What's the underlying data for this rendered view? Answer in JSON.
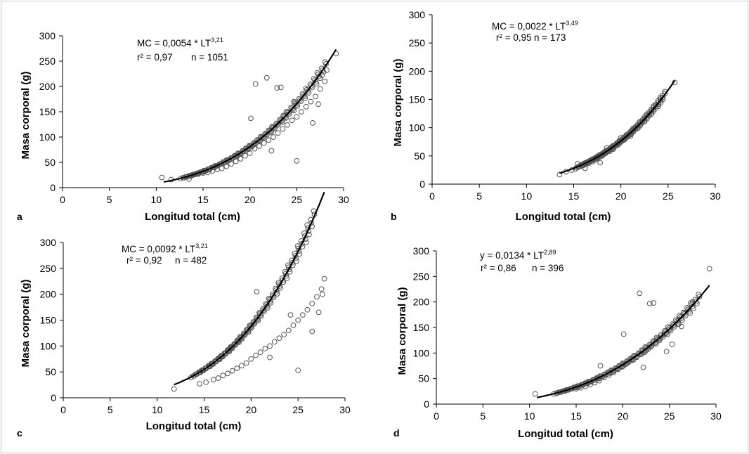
{
  "chart_data": [
    {
      "type": "scatter",
      "panel_label": "a",
      "xlabel": "Longitud total (cm)",
      "ylabel": "Masa corporal (g)",
      "xlim": [
        0,
        30
      ],
      "ylim": [
        0,
        300
      ],
      "xticks": [
        "0",
        "5",
        "10",
        "15",
        "20",
        "25",
        "30"
      ],
      "yticks": [
        "0",
        "50",
        "100",
        "150",
        "200",
        "250",
        "300"
      ],
      "equation": {
        "prefix": "MC = 0,0054 * LT",
        "exponent": "3,21",
        "r2_label": "r² = 0,97",
        "n_label": "n = 1051"
      },
      "fit": {
        "a": 0.0054,
        "b": 3.21,
        "x_range": [
          10.8,
          29.2
        ]
      },
      "series": [
        {
          "type": "scatter",
          "points": [
            [
              10.6,
              20
            ],
            [
              11.6,
              16
            ],
            [
              13.5,
              17
            ],
            [
              14.5,
              27
            ],
            [
              15.0,
              29
            ],
            [
              15.5,
              30
            ],
            [
              16,
              33
            ],
            [
              16.5,
              36
            ],
            [
              17,
              38
            ],
            [
              17.5,
              42
            ],
            [
              18,
              47
            ],
            [
              18.5,
              52
            ],
            [
              19,
              57
            ],
            [
              19.5,
              63
            ],
            [
              20,
              68
            ],
            [
              20.5,
              77
            ],
            [
              21,
              82
            ],
            [
              21.5,
              88
            ],
            [
              22,
              94
            ],
            [
              22.5,
              100
            ],
            [
              23,
              108
            ],
            [
              23.5,
              116
            ],
            [
              24,
              124
            ],
            [
              24.5,
              133
            ],
            [
              25,
              140
            ],
            [
              25.5,
              150
            ],
            [
              26,
              160
            ],
            [
              26.5,
              170
            ],
            [
              27,
              180
            ],
            [
              27.5,
              195
            ],
            [
              28,
              210
            ],
            [
              29.2,
              265
            ],
            [
              20.6,
              205
            ],
            [
              21.8,
              217
            ],
            [
              22.9,
              197
            ],
            [
              23.3,
              198
            ],
            [
              20.1,
              137
            ],
            [
              25.0,
              53
            ],
            [
              22.3,
              73
            ],
            [
              26.7,
              128
            ],
            [
              23.9,
              150
            ],
            [
              27.3,
              165
            ],
            [
              24.7,
              170
            ],
            [
              27.7,
              222
            ],
            [
              28.2,
              232
            ]
          ]
        }
      ]
    },
    {
      "type": "scatter",
      "panel_label": "b",
      "xlabel": "Longitud total (cm)",
      "ylabel": "Masa corporal (g)",
      "xlim": [
        0,
        30
      ],
      "ylim": [
        0,
        300
      ],
      "xticks": [
        "0",
        "5",
        "10",
        "15",
        "20",
        "25",
        "30"
      ],
      "yticks": [
        "0",
        "50",
        "100",
        "150",
        "200",
        "250",
        "300"
      ],
      "equation": {
        "prefix": "MC = 0,0022 * LT",
        "exponent": "3,49",
        "r2_label": "r² = 0,95",
        "n_label": "n = 173"
      },
      "fit": {
        "a": 0.0022,
        "b": 3.49,
        "x_range": [
          13.5,
          25.7
        ]
      },
      "series": [
        {
          "type": "scatter",
          "points": [
            [
              13.5,
              17
            ],
            [
              14.2,
              22
            ],
            [
              14.8,
              25
            ],
            [
              15.2,
              27
            ],
            [
              15.5,
              30
            ],
            [
              15.8,
              32
            ],
            [
              16,
              33
            ],
            [
              16.3,
              35
            ],
            [
              16.6,
              37
            ],
            [
              17,
              40
            ],
            [
              17.3,
              43
            ],
            [
              17.6,
              46
            ],
            [
              18,
              50
            ],
            [
              18.4,
              55
            ],
            [
              18.8,
              58
            ],
            [
              19.2,
              62
            ],
            [
              19.8,
              72
            ],
            [
              20,
              82
            ],
            [
              20.3,
              80
            ],
            [
              21,
              85
            ],
            [
              21.2,
              95
            ],
            [
              21.5,
              100
            ],
            [
              25.7,
              180
            ],
            [
              16.2,
              28
            ],
            [
              17.8,
              38
            ],
            [
              15.4,
              36
            ],
            [
              18.5,
              64
            ]
          ]
        }
      ]
    },
    {
      "type": "scatter",
      "panel_label": "c",
      "xlabel": "Longitud total (cm)",
      "ylabel": "Masa corporal (g)",
      "xlim": [
        0,
        30
      ],
      "ylim": [
        0,
        300
      ],
      "xticks": [
        "0",
        "5",
        "10",
        "15",
        "20",
        "25",
        "30"
      ],
      "yticks": [
        "0",
        "50",
        "100",
        "150",
        "200",
        "250",
        "300"
      ],
      "equation": {
        "prefix": "MC = 0,0092 * LT",
        "exponent": "3,21",
        "r2_label": "r² = 0,92",
        "n_label": "n = 482"
      },
      "fit": {
        "a": 0.0092,
        "b": 3.21,
        "x_range": [
          11.8,
          27.8
        ]
      },
      "series": [
        {
          "type": "scatter",
          "points": [
            [
              11.8,
              17
            ],
            [
              14.5,
              27
            ],
            [
              15.2,
              30
            ],
            [
              16,
              35
            ],
            [
              16.5,
              38
            ],
            [
              17,
              43
            ],
            [
              17.5,
              47
            ],
            [
              18,
              52
            ],
            [
              18.5,
              57
            ],
            [
              19,
              62
            ],
            [
              19.5,
              67
            ],
            [
              20,
              75
            ],
            [
              20.5,
              82
            ],
            [
              21,
              88
            ],
            [
              21.5,
              95
            ],
            [
              22,
              100
            ],
            [
              22.5,
              108
            ],
            [
              23,
              115
            ],
            [
              23.5,
              122
            ],
            [
              24,
              130
            ],
            [
              24.5,
              140
            ],
            [
              25,
              150
            ],
            [
              25.5,
              160
            ],
            [
              26,
              170
            ],
            [
              26.5,
              182
            ],
            [
              27,
              195
            ],
            [
              27.5,
              210
            ],
            [
              27.8,
              230
            ],
            [
              20.6,
              205
            ],
            [
              25.0,
              53
            ],
            [
              22.0,
              78
            ],
            [
              26.5,
              128
            ],
            [
              27.2,
              165
            ],
            [
              24.2,
              160
            ],
            [
              27.6,
              200
            ]
          ]
        }
      ]
    },
    {
      "type": "scatter",
      "panel_label": "d",
      "xlabel": "Longitud total (cm)",
      "ylabel": "Masa corporal (g)",
      "xlim": [
        0,
        30
      ],
      "ylim": [
        0,
        300
      ],
      "xticks": [
        "0",
        "5",
        "10",
        "15",
        "20",
        "25",
        "30"
      ],
      "yticks": [
        "0",
        "50",
        "100",
        "150",
        "200",
        "250",
        "300"
      ],
      "equation": {
        "prefix": "y = 0,0134 * LT",
        "exponent": "2,89",
        "r2_label": "r² = 0,86",
        "n_label": "n = 396"
      },
      "fit": {
        "a": 0.0134,
        "b": 2.89,
        "x_range": [
          10.8,
          29.3
        ]
      },
      "series": [
        {
          "type": "scatter",
          "points": [
            [
              10.6,
              20
            ],
            [
              15.0,
              30
            ],
            [
              15.5,
              32
            ],
            [
              16,
              35
            ],
            [
              16.5,
              38
            ],
            [
              17,
              42
            ],
            [
              17.5,
              46
            ],
            [
              18,
              52
            ],
            [
              18.5,
              57
            ],
            [
              19,
              62
            ],
            [
              19.5,
              68
            ],
            [
              20,
              74
            ],
            [
              20.5,
              80
            ],
            [
              21,
              86
            ],
            [
              21.5,
              92
            ],
            [
              22,
              98
            ],
            [
              22.5,
              105
            ],
            [
              23,
              112
            ],
            [
              23.5,
              120
            ],
            [
              24,
              128
            ],
            [
              24.5,
              137
            ],
            [
              25,
              146
            ],
            [
              25.5,
              155
            ],
            [
              26,
              165
            ],
            [
              26.5,
              178
            ],
            [
              27,
              185
            ],
            [
              27.5,
              200
            ],
            [
              29.3,
              265
            ],
            [
              21.8,
              217
            ],
            [
              22.9,
              197
            ],
            [
              23.3,
              198
            ],
            [
              20.1,
              137
            ],
            [
              22.2,
              72
            ],
            [
              25.3,
              117
            ],
            [
              24.7,
              103
            ],
            [
              26.3,
              152
            ],
            [
              17.6,
              75
            ]
          ]
        }
      ]
    }
  ]
}
